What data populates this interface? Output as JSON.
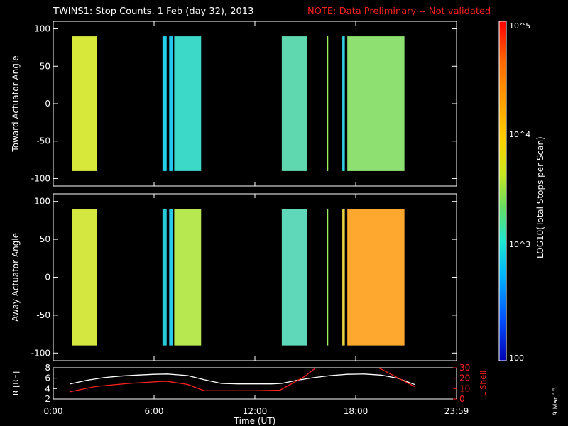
{
  "header": {
    "title": "TWINS1: Stop Counts.  1 Feb (day  32), 2013",
    "note": "NOTE: Data Preliminary -- Not validated"
  },
  "side_stamp": "9 Mar 13",
  "colorbar": {
    "label": "LOG10(Total Stops per Scan)",
    "ticks": [
      "10^5",
      "10^4",
      "10^3",
      "100"
    ],
    "colors": [
      "#ff0000",
      "#ff6a00",
      "#ffa500",
      "#ffd000",
      "#c8e61e",
      "#64dc64",
      "#1ee6d2",
      "#00b4ff",
      "#0050ff",
      "#0000b4"
    ]
  },
  "chart_data": [
    {
      "type": "heatmap",
      "title": "",
      "ylabel": "Toward Actuator Angle",
      "xlabel": "",
      "xlim": [
        0,
        24
      ],
      "ylim": [
        -110,
        110
      ],
      "yticks": [
        "100",
        "50",
        "0",
        "-50",
        "-100"
      ],
      "segments": [
        {
          "start": 1.1,
          "end": 2.6,
          "color": "#d8e83a"
        },
        {
          "start": 6.5,
          "end": 6.75,
          "color": "#22d0e8"
        },
        {
          "start": 6.9,
          "end": 7.1,
          "color": "#22c8f0"
        },
        {
          "start": 7.2,
          "end": 8.8,
          "color": "#3cd8c8"
        },
        {
          "start": 13.6,
          "end": 15.1,
          "color": "#5fd8b0"
        },
        {
          "start": 16.3,
          "end": 16.35,
          "color": "#9cf05a"
        },
        {
          "start": 17.2,
          "end": 17.35,
          "color": "#30d0e0"
        },
        {
          "start": 17.5,
          "end": 20.9,
          "color": "#8ee070"
        }
      ]
    },
    {
      "type": "heatmap",
      "title": "",
      "ylabel": "Away Actuator Angle",
      "xlabel": "",
      "xlim": [
        0,
        24
      ],
      "ylim": [
        -110,
        110
      ],
      "yticks": [
        "100",
        "50",
        "0",
        "-50",
        "-100"
      ],
      "segments": [
        {
          "start": 1.1,
          "end": 2.6,
          "color": "#d4e640"
        },
        {
          "start": 6.5,
          "end": 6.75,
          "color": "#28ccd8"
        },
        {
          "start": 6.9,
          "end": 7.1,
          "color": "#2cc8ec"
        },
        {
          "start": 7.2,
          "end": 8.8,
          "color": "#b8e850"
        },
        {
          "start": 13.6,
          "end": 15.1,
          "color": "#5ed8b8"
        },
        {
          "start": 16.3,
          "end": 16.35,
          "color": "#9cf05a"
        },
        {
          "start": 17.2,
          "end": 17.35,
          "color": "#e6d040"
        },
        {
          "start": 17.5,
          "end": 20.9,
          "color": "#ffa830"
        }
      ]
    },
    {
      "type": "line",
      "title": "",
      "ylabel": "R [RE]",
      "ylabel_right": "L Shell",
      "xlabel": "Time (UT)",
      "xlim": [
        0,
        24
      ],
      "ylim": [
        2,
        8
      ],
      "yticks": [
        "8",
        "6",
        "4",
        "2"
      ],
      "ylim_right": [
        0,
        30
      ],
      "yticks_right": [
        "30",
        "20",
        "10",
        "0"
      ],
      "xticks": [
        "0:00",
        "6:00",
        "12:00",
        "18:00",
        "23:59"
      ],
      "series": [
        {
          "axis": "left",
          "color": "#ffffff",
          "x": [
            1.0,
            2.0,
            3.0,
            4.0,
            5.0,
            6.0,
            6.8,
            8.0,
            9.0,
            10.0,
            11.0,
            12.0,
            13.0,
            13.6,
            14.5,
            15.5,
            16.5,
            17.5,
            18.5,
            19.5,
            20.5,
            21.5
          ],
          "y": [
            4.9,
            5.6,
            6.1,
            6.4,
            6.6,
            6.75,
            6.8,
            6.5,
            5.7,
            5.0,
            4.9,
            4.9,
            4.9,
            5.0,
            5.6,
            6.1,
            6.5,
            6.75,
            6.8,
            6.6,
            6.0,
            4.8
          ]
        },
        {
          "axis": "right",
          "color": "#ff2020",
          "x": [
            1.0,
            2.5,
            4.5,
            6.5,
            6.8,
            8.0,
            9.0,
            12.0,
            13.5,
            15.0,
            15.7,
            16.5,
            19.2,
            19.6,
            21.5
          ],
          "y": [
            7.0,
            12.0,
            15.0,
            17.0,
            17.0,
            14.0,
            8.0,
            8.0,
            8.5,
            22.0,
            31.0,
            31.0,
            31.0,
            28.0,
            12.0
          ]
        }
      ]
    }
  ]
}
